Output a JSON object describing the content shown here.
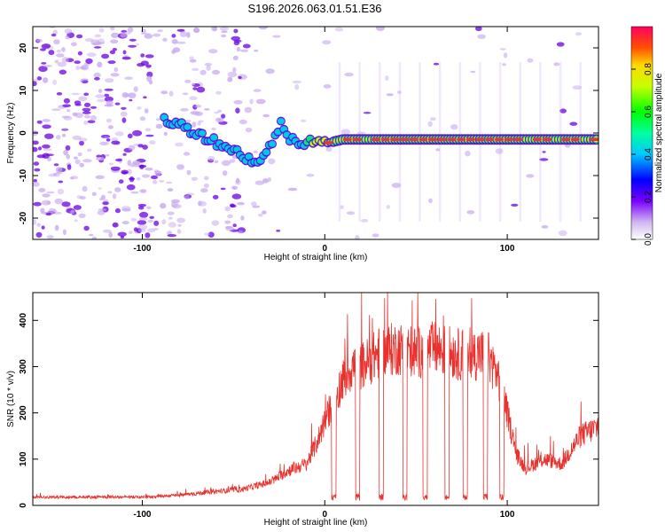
{
  "title": "S196.2026.063.01.51.E36",
  "colors": {
    "snr_line": "#e8322e",
    "ridge_core": "#e8323c",
    "ridge_mid": "#ffe800",
    "ridge_outer": "#00e87a",
    "ridge_edge": "#00c8e8",
    "noise_dark": "#6a00e0",
    "noise_light": "#c8a8f0"
  },
  "chart_data": [
    {
      "type": "heatmap",
      "name": "spectrogram",
      "xlabel": "Height of straight line (km)",
      "ylabel": "Frequency (Hz)",
      "xlim": [
        -160,
        150
      ],
      "ylim": [
        -25,
        25
      ],
      "xticks": [
        -100,
        0,
        100
      ],
      "xtick_labels": [
        "-100",
        "0",
        "100"
      ],
      "yticks": [
        -20,
        -10,
        0,
        10,
        20
      ],
      "ytick_labels": [
        "-20",
        "-10",
        "0",
        "10",
        "20"
      ],
      "colorbar": {
        "label": "Normalized spectral amplitude",
        "range": [
          0,
          1
        ],
        "ticks": [
          0.0,
          0.2,
          0.4,
          0.6,
          0.8
        ],
        "tick_labels": [
          "0.0",
          "0.2",
          "0.4",
          "0.6",
          "0.8"
        ]
      },
      "ridge": {
        "x": [
          -88,
          -80,
          -70,
          -60,
          -50,
          -42,
          -36,
          -32,
          -28,
          -24,
          -20,
          -15,
          -10,
          -5,
          0,
          10,
          20,
          40,
          60,
          80,
          100,
          120,
          150
        ],
        "frequency": [
          3,
          2,
          0,
          -2,
          -4,
          -6,
          -7,
          -5,
          -1,
          2,
          -1,
          -2,
          -2,
          -1.5,
          -2.5,
          -1.5,
          -1.5,
          -1.5,
          -1.5,
          -1.5,
          -1.5,
          -1.5,
          -1.5
        ],
        "amplitude": [
          0.3,
          0.25,
          0.25,
          0.25,
          0.3,
          0.3,
          0.35,
          0.35,
          0.3,
          0.3,
          0.35,
          0.5,
          0.5,
          0.6,
          0.6,
          0.85,
          0.9,
          0.95,
          0.95,
          0.95,
          0.9,
          0.9,
          0.9
        ]
      }
    },
    {
      "type": "line",
      "name": "snr",
      "xlabel": "Height of straight line (km)",
      "ylabel": "SNR (10 * v/v)",
      "xlim": [
        -160,
        150
      ],
      "ylim": [
        0,
        460
      ],
      "xticks": [
        -100,
        0,
        100
      ],
      "xtick_labels": [
        "-100",
        "0",
        "100"
      ],
      "yticks": [
        0,
        100,
        200,
        300,
        400
      ],
      "ytick_labels": [
        "0",
        "100",
        "200",
        "300",
        "400"
      ],
      "envelope": {
        "x": [
          -160,
          -130,
          -100,
          -80,
          -60,
          -45,
          -30,
          -20,
          -10,
          -5,
          0,
          5,
          10,
          15,
          20,
          30,
          40,
          50,
          60,
          70,
          80,
          85,
          90,
          95,
          100,
          105,
          110,
          120,
          130,
          140,
          150
        ],
        "y": [
          18,
          18,
          18,
          22,
          30,
          35,
          50,
          75,
          90,
          130,
          180,
          230,
          270,
          300,
          300,
          330,
          340,
          330,
          340,
          330,
          320,
          330,
          320,
          280,
          200,
          110,
          80,
          100,
          90,
          150,
          170
        ]
      },
      "dropouts": [
        5,
        18,
        31,
        44,
        55,
        67,
        77,
        88,
        97
      ]
    }
  ]
}
